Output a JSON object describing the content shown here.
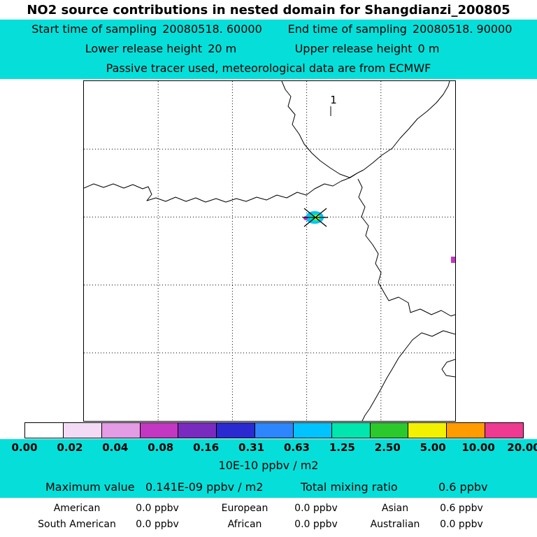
{
  "page": {
    "background": "#ffffff",
    "band_color": "#06dfd9"
  },
  "header": {
    "title": "NO2 source contributions in nested domain for Shangdianzi_200805",
    "start_label": "Start time of sampling",
    "start_value": "20080518. 60000",
    "end_label": "End time of sampling",
    "end_value": "20080518. 90000",
    "lower_label": "Lower release height",
    "lower_value": "20 m",
    "upper_label": "Upper release height",
    "upper_value": "0 m",
    "tracer_note": "Passive tracer used, meteorological data are from ECMWF"
  },
  "map": {
    "marker_label": "1",
    "grid_divisions": 5,
    "plume_colors": [
      "#00c3ff",
      "#00e6ae",
      "#f2f200",
      "#c238c2"
    ]
  },
  "colorbar": {
    "levels": [
      "0.00",
      "0.02",
      "0.04",
      "0.08",
      "0.16",
      "0.31",
      "0.63",
      "1.25",
      "2.50",
      "5.00",
      "10.00",
      "20.00"
    ],
    "colors": [
      "#ffffff",
      "#f3dbf6",
      "#e49ce4",
      "#c238c2",
      "#7a2bbf",
      "#2a2ad0",
      "#2e86ff",
      "#00c3ff",
      "#00e6ae",
      "#2cc92c",
      "#f2f200",
      "#ff9c00",
      "#ef3a92"
    ],
    "unit": "10E-10 ppbv / m2"
  },
  "stats": {
    "max_label": "Maximum value",
    "max_value": "0.141E-09 ppbv / m2",
    "tmr_label": "Total mixing ratio",
    "tmr_value": "0.6 ppbv",
    "contributions": [
      {
        "region": "American",
        "value": "0.0 ppbv"
      },
      {
        "region": "European",
        "value": "0.0 ppbv"
      },
      {
        "region": "Asian",
        "value": "0.6 ppbv"
      },
      {
        "region": "South American",
        "value": "0.0 ppbv"
      },
      {
        "region": "African",
        "value": "0.0 ppbv"
      },
      {
        "region": "Australian",
        "value": "0.0 ppbv"
      }
    ]
  },
  "chart_data": {
    "type": "heatmap",
    "title": "NO2 source contributions in nested domain for Shangdianzi_200805",
    "sampling": {
      "start": "20080518. 60000",
      "end": "20080518. 90000"
    },
    "release_height_m": {
      "lower": 20,
      "upper": 0
    },
    "tracer": "Passive tracer used, meteorological data are from ECMWF",
    "colorbar_levels": [
      0.0,
      0.02,
      0.04,
      0.08,
      0.16,
      0.31,
      0.63,
      1.25,
      2.5,
      5.0,
      10.0,
      20.0
    ],
    "colorbar_unit": "10E-10 ppbv / m2",
    "max_value": "0.141E-09 ppbv / m2",
    "total_mixing_ratio_ppbv": 0.6,
    "contributions_ppbv": {
      "American": 0.0,
      "European": 0.0,
      "Asian": 0.6,
      "South American": 0.0,
      "African": 0.0,
      "Australian": 0.0
    },
    "numbered_markers": [
      "1"
    ],
    "receptor_marker": "cross over small cyan/green/yellow plume near map center",
    "grid": "5x5 dotted graticule, coastlines of Bohai Sea / East China region",
    "legend_position": "bottom"
  }
}
